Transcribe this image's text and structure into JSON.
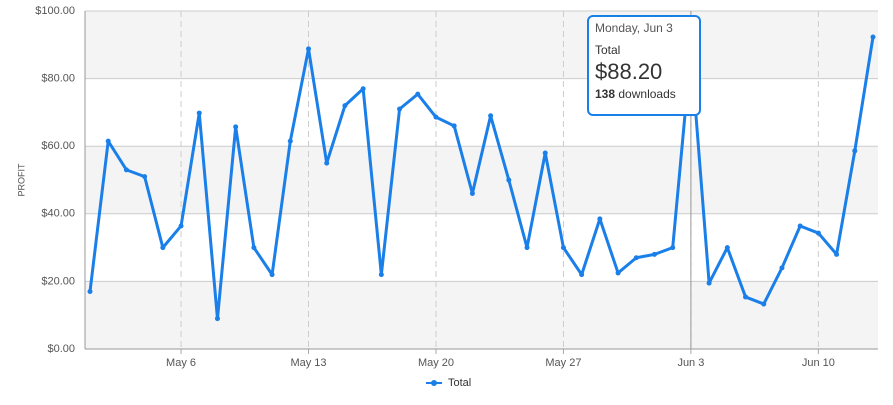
{
  "chart_data": {
    "type": "line",
    "y_label": "PROFIT",
    "categories": [
      null,
      null,
      null,
      null,
      null,
      "May 6",
      null,
      null,
      null,
      null,
      null,
      null,
      "May 13",
      null,
      null,
      null,
      null,
      null,
      null,
      "May 20",
      null,
      null,
      null,
      null,
      null,
      null,
      "May 27",
      null,
      null,
      null,
      null,
      null,
      null,
      "Jun 3",
      null,
      null,
      null,
      null,
      null,
      null,
      "Jun 10",
      null,
      null,
      null
    ],
    "series": [
      {
        "name": "Total",
        "color": "#1a7fe8",
        "values": [
          17,
          61.5,
          53,
          51,
          30,
          36.4,
          69.8,
          9,
          65.7,
          30,
          22,
          61.5,
          88.8,
          55,
          72,
          77,
          22,
          71,
          75.4,
          68.6,
          66,
          46,
          69,
          50,
          30,
          58,
          30,
          22,
          38.5,
          22.5,
          27,
          28,
          30,
          88.2,
          19.5,
          30,
          15.4,
          13.3,
          24,
          36.4,
          34.3,
          28,
          58.6,
          92.3
        ]
      }
    ],
    "ylim": [
      0,
      100
    ],
    "yticks": [
      {
        "value": 0,
        "label": "$0.00"
      },
      {
        "value": 20,
        "label": "$20.00"
      },
      {
        "value": 40,
        "label": "$40.00"
      },
      {
        "value": 60,
        "label": "$60.00"
      },
      {
        "value": 80,
        "label": "$80.00"
      },
      {
        "value": 100,
        "label": "$100.00"
      }
    ],
    "grid": true,
    "legend": "bottom",
    "tooltip": {
      "title": "Monday, Jun 3",
      "series": "Total",
      "value": "$88.20",
      "downloads": 138,
      "unit": "downloads"
    }
  }
}
